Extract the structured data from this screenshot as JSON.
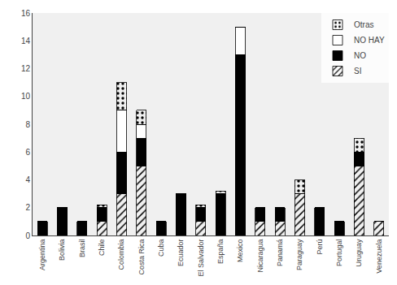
{
  "chart_data": {
    "type": "bar",
    "stacked": true,
    "categories": [
      "Argentina",
      "Bolivia",
      "Brasil",
      "Chile",
      "Colombia",
      "Costa Rica",
      "Cuba",
      "Ecuador",
      "El Salvador",
      "España",
      "Mexico",
      "Nicaragua",
      "Panamá",
      "Paraguay",
      "Perú",
      "Portugal",
      "Uruguay",
      "Venezuela"
    ],
    "series": [
      {
        "name": "SI",
        "color": "#ffffff",
        "values": [
          0,
          0,
          0,
          1,
          3,
          5,
          0,
          0,
          1,
          0,
          0,
          1,
          1,
          3,
          0,
          0,
          5,
          1
        ]
      },
      {
        "name": "NO",
        "color": "#000000",
        "values": [
          1,
          2,
          1,
          1,
          3,
          2,
          1,
          3,
          1,
          3,
          13,
          1,
          1,
          0,
          2,
          1,
          1,
          0
        ]
      },
      {
        "name": "NO HAY",
        "color": "#ffffff",
        "values": [
          0,
          0,
          0,
          0,
          3,
          1,
          0,
          0,
          0,
          0,
          2,
          0,
          0,
          0,
          0,
          0,
          0,
          0
        ]
      },
      {
        "name": "Otras",
        "color": "#aaaaaa",
        "values": [
          0,
          0,
          0,
          0.2,
          2,
          1,
          0,
          0,
          0.2,
          0.2,
          0,
          0,
          0,
          1,
          0,
          0,
          1,
          0
        ]
      }
    ],
    "ylim": [
      0,
      16
    ],
    "yticks": [
      0,
      2,
      4,
      6,
      8,
      10,
      12,
      14,
      16
    ],
    "grid": false,
    "legend": "upper right"
  }
}
